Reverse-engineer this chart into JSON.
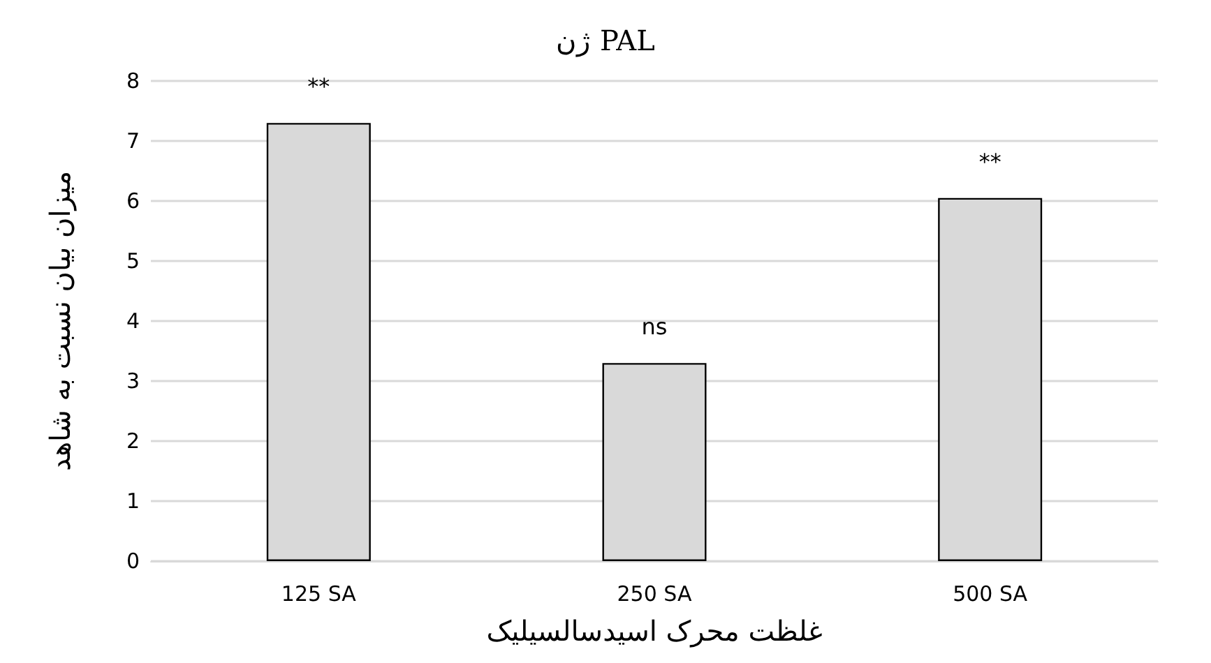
{
  "chart_data": {
    "type": "bar",
    "title": "ژن PAL",
    "xlabel": "غلظت محرک اسیدسالسیلیک",
    "ylabel": "میزان بیان نسبت به شاهد",
    "categories": [
      "125 SA",
      "250 SA",
      "500 SA"
    ],
    "values": [
      7.3,
      3.3,
      6.05
    ],
    "color": "#d9d9d9",
    "ylim": [
      0,
      8
    ],
    "yticks": [
      0,
      1,
      2,
      3,
      4,
      5,
      6,
      7,
      8
    ],
    "grid": "y",
    "annotations": [
      {
        "text": "**",
        "x": "125 SA",
        "y": 7.3
      },
      {
        "text": "ns",
        "x": "250 SA",
        "y": 3.3
      },
      {
        "text": "**",
        "x": "500 SA",
        "y": 6.05
      }
    ]
  }
}
